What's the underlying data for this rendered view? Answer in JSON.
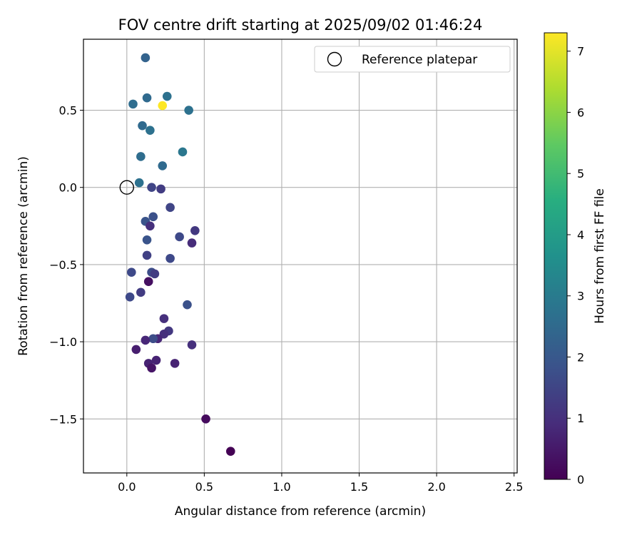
{
  "chart_data": {
    "type": "scatter",
    "title": "FOV centre drift starting at 2025/09/02 01:46:24",
    "xlabel": "Angular distance from reference (arcmin)",
    "ylabel": "Rotation from reference (arcmin)",
    "xlim": [
      -0.28,
      2.52
    ],
    "ylim": [
      -1.85,
      0.96
    ],
    "xticks": [
      0.0,
      0.5,
      1.0,
      1.5,
      2.0,
      2.5
    ],
    "xtick_labels": [
      "0.0",
      "0.5",
      "1.0",
      "1.5",
      "2.0",
      "2.5"
    ],
    "yticks": [
      -1.5,
      -1.0,
      -0.5,
      0.0,
      0.5
    ],
    "ytick_labels": [
      "−1.5",
      "−1.0",
      "−0.5",
      "0.0",
      "0.5"
    ],
    "grid": true,
    "legend": {
      "position": "top-right",
      "entries": [
        "Reference platepar"
      ]
    },
    "reference_point": {
      "x": 0.0,
      "y": 0.0
    },
    "colorbar": {
      "label": "Hours from first FF file",
      "colormap": "viridis",
      "range": [
        0,
        7.3
      ],
      "ticks": [
        0,
        1,
        2,
        3,
        4,
        5,
        6,
        7
      ],
      "tick_labels": [
        "0",
        "1",
        "2",
        "3",
        "4",
        "5",
        "6",
        "7"
      ]
    },
    "points": [
      {
        "x": 0.12,
        "y": 0.84,
        "hours": 2.3
      },
      {
        "x": 0.13,
        "y": 0.58,
        "hours": 2.5
      },
      {
        "x": 0.26,
        "y": 0.59,
        "hours": 2.7
      },
      {
        "x": 0.04,
        "y": 0.54,
        "hours": 2.6
      },
      {
        "x": 0.23,
        "y": 0.53,
        "hours": 7.3
      },
      {
        "x": 0.4,
        "y": 0.5,
        "hours": 2.7
      },
      {
        "x": 0.1,
        "y": 0.4,
        "hours": 2.5
      },
      {
        "x": 0.15,
        "y": 0.37,
        "hours": 2.7
      },
      {
        "x": 0.36,
        "y": 0.23,
        "hours": 2.9
      },
      {
        "x": 0.09,
        "y": 0.2,
        "hours": 2.6
      },
      {
        "x": 0.23,
        "y": 0.14,
        "hours": 2.5
      },
      {
        "x": 0.08,
        "y": 0.03,
        "hours": 2.7
      },
      {
        "x": 0.16,
        "y": 0.0,
        "hours": 1.5
      },
      {
        "x": 0.22,
        "y": -0.01,
        "hours": 1.3
      },
      {
        "x": 0.28,
        "y": -0.13,
        "hours": 1.5
      },
      {
        "x": 0.17,
        "y": -0.19,
        "hours": 1.8
      },
      {
        "x": 0.12,
        "y": -0.22,
        "hours": 1.9
      },
      {
        "x": 0.15,
        "y": -0.25,
        "hours": 1.0
      },
      {
        "x": 0.44,
        "y": -0.28,
        "hours": 1.2
      },
      {
        "x": 0.34,
        "y": -0.32,
        "hours": 1.6
      },
      {
        "x": 0.13,
        "y": -0.34,
        "hours": 1.9
      },
      {
        "x": 0.42,
        "y": -0.36,
        "hours": 0.9
      },
      {
        "x": 0.13,
        "y": -0.44,
        "hours": 1.4
      },
      {
        "x": 0.28,
        "y": -0.46,
        "hours": 1.6
      },
      {
        "x": 0.03,
        "y": -0.55,
        "hours": 1.6
      },
      {
        "x": 0.16,
        "y": -0.55,
        "hours": 1.7
      },
      {
        "x": 0.18,
        "y": -0.56,
        "hours": 1.3
      },
      {
        "x": 0.14,
        "y": -0.61,
        "hours": 0.3
      },
      {
        "x": 0.09,
        "y": -0.68,
        "hours": 1.3
      },
      {
        "x": 0.02,
        "y": -0.71,
        "hours": 1.6
      },
      {
        "x": 0.39,
        "y": -0.76,
        "hours": 1.8
      },
      {
        "x": 0.24,
        "y": -0.85,
        "hours": 1.0
      },
      {
        "x": 0.27,
        "y": -0.93,
        "hours": 1.2
      },
      {
        "x": 0.24,
        "y": -0.95,
        "hours": 1.0
      },
      {
        "x": 0.2,
        "y": -0.98,
        "hours": 0.8
      },
      {
        "x": 0.17,
        "y": -0.98,
        "hours": 1.7
      },
      {
        "x": 0.12,
        "y": -0.99,
        "hours": 0.8
      },
      {
        "x": 0.42,
        "y": -1.02,
        "hours": 1.0
      },
      {
        "x": 0.06,
        "y": -1.05,
        "hours": 0.6
      },
      {
        "x": 0.19,
        "y": -1.12,
        "hours": 0.7
      },
      {
        "x": 0.14,
        "y": -1.14,
        "hours": 0.7
      },
      {
        "x": 0.31,
        "y": -1.14,
        "hours": 0.7
      },
      {
        "x": 0.16,
        "y": -1.17,
        "hours": 0.4
      },
      {
        "x": 0.51,
        "y": -1.5,
        "hours": 0.2
      },
      {
        "x": 0.67,
        "y": -1.71,
        "hours": 0.0
      }
    ]
  }
}
